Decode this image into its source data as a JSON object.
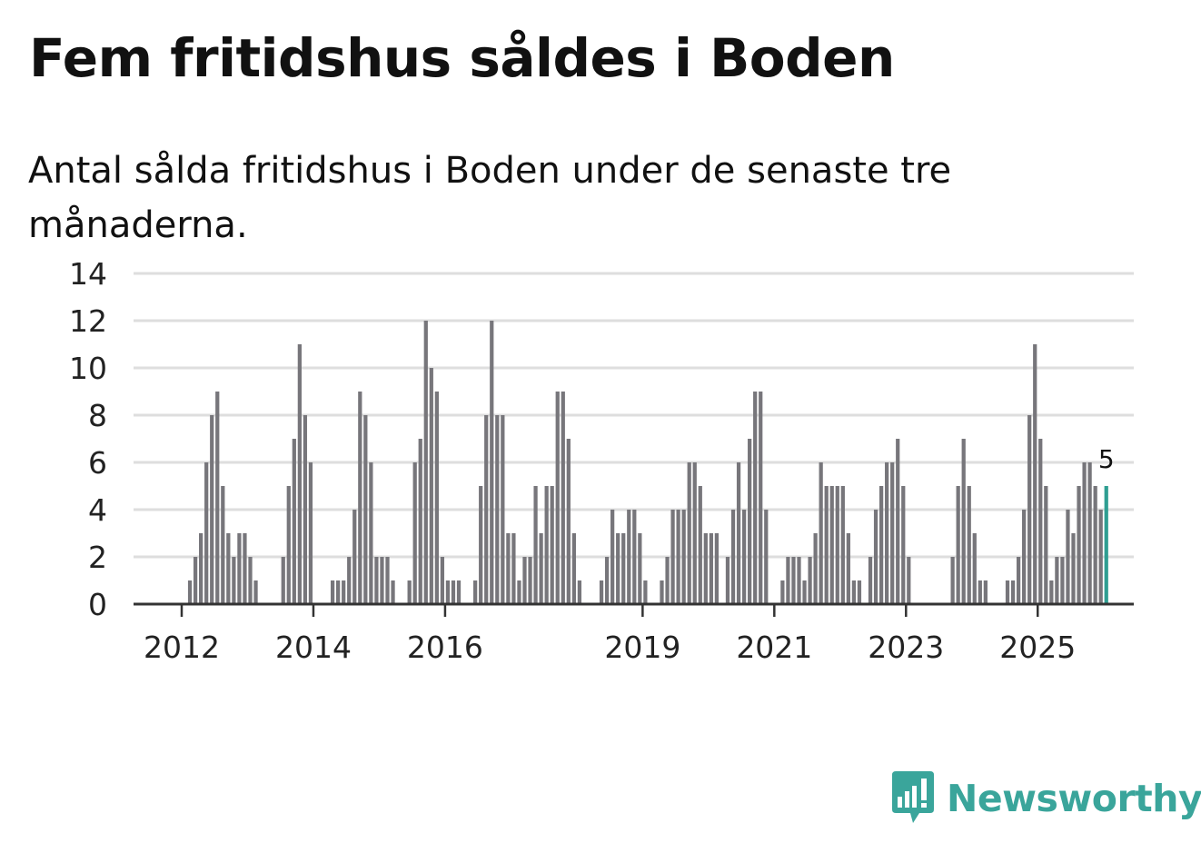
{
  "header": {
    "title": "Fem fritidshus såldes i Boden",
    "subtitle": "Antal sålda fritidshus i Boden under de senaste tre månaderna."
  },
  "brand": {
    "name": "Newsworthy",
    "color": "#3aa59b",
    "icon": "bar-chart-speech-bubble-icon"
  },
  "chart_data": {
    "type": "bar",
    "title": "Fem fritidshus såldes i Boden",
    "subtitle": "Antal sålda fritidshus i Boden under de senaste tre månaderna.",
    "xlabel": "",
    "ylabel": "",
    "ylim": [
      0,
      14
    ],
    "yticks": [
      0,
      2,
      4,
      6,
      8,
      10,
      12,
      14
    ],
    "grid": true,
    "start_year": 2011,
    "start_month": 1,
    "x_ticks": [
      {
        "label": "2012",
        "year": 2012
      },
      {
        "label": "2014",
        "year": 2014
      },
      {
        "label": "2016",
        "year": 2016
      },
      {
        "label": "2019",
        "year": 2019
      },
      {
        "label": "2021",
        "year": 2021
      },
      {
        "label": "2023",
        "year": 2023
      },
      {
        "label": "2025",
        "year": 2025
      }
    ],
    "values": [
      0,
      0,
      0,
      0,
      0,
      0,
      0,
      0,
      0,
      0,
      0,
      0,
      0,
      1,
      2,
      3,
      6,
      8,
      9,
      5,
      3,
      2,
      3,
      3,
      2,
      1,
      0,
      0,
      0,
      0,
      2,
      5,
      7,
      11,
      8,
      6,
      0,
      0,
      0,
      1,
      1,
      1,
      2,
      4,
      9,
      8,
      6,
      2,
      2,
      2,
      1,
      0,
      0,
      1,
      6,
      7,
      12,
      10,
      9,
      2,
      1,
      1,
      1,
      0,
      0,
      1,
      5,
      8,
      12,
      8,
      8,
      3,
      3,
      1,
      2,
      2,
      5,
      3,
      5,
      5,
      9,
      9,
      7,
      3,
      1,
      0,
      0,
      0,
      1,
      2,
      4,
      3,
      3,
      4,
      4,
      3,
      1,
      0,
      0,
      1,
      2,
      4,
      4,
      4,
      6,
      6,
      5,
      3,
      3,
      3,
      0,
      2,
      4,
      6,
      4,
      7,
      9,
      9,
      4,
      0,
      0,
      1,
      2,
      2,
      2,
      1,
      2,
      3,
      6,
      5,
      5,
      5,
      5,
      3,
      1,
      1,
      0,
      2,
      4,
      5,
      6,
      6,
      7,
      5,
      2,
      0,
      0,
      0,
      0,
      0,
      0,
      0,
      2,
      5,
      7,
      5,
      3,
      1,
      1,
      0,
      0,
      0,
      1,
      1,
      2,
      4,
      8,
      11,
      7,
      5,
      1,
      2,
      2,
      4,
      3,
      5,
      6,
      6,
      5,
      4,
      5
    ],
    "last_value_label": "5",
    "bar_color": "#77767b",
    "highlight_color": "#2f9e92"
  }
}
